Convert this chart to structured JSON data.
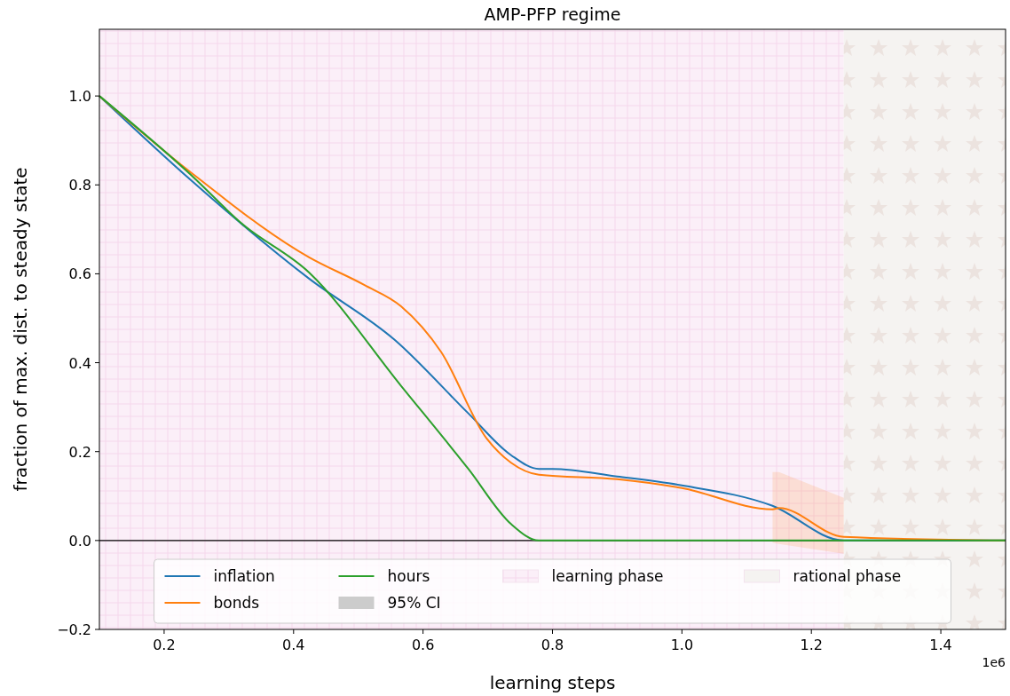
{
  "chart_data": {
    "type": "line",
    "title": "AMP-PFP regime",
    "xlabel": "learning steps",
    "ylabel": "fraction of max. dist. to steady state",
    "xlim": [
      0.1,
      1.5
    ],
    "xticks": [
      {
        "value": 0.2,
        "label": "0.2"
      },
      {
        "value": 0.4,
        "label": "0.4"
      },
      {
        "value": 0.6,
        "label": "0.6"
      },
      {
        "value": 0.8,
        "label": "0.8"
      },
      {
        "value": 1,
        "label": "1.0"
      },
      {
        "value": 1.2,
        "label": "1.2"
      },
      {
        "value": 1.4,
        "label": "1.4"
      }
    ],
    "ylim": [
      -0.2,
      1.15
    ],
    "yticks": [
      {
        "value": -0.2,
        "label": "−0.2"
      },
      {
        "value": 0,
        "label": "0.0"
      },
      {
        "value": 0.2,
        "label": "0.2"
      },
      {
        "value": 0.4,
        "label": "0.4"
      },
      {
        "value": 0.6,
        "label": "0.6"
      },
      {
        "value": 0.8,
        "label": "0.8"
      },
      {
        "value": 1,
        "label": "1.0"
      }
    ],
    "annotations": [
      "1e6",
      "95% CI"
    ],
    "legend": "bottom",
    "line_style": "solid",
    "ref_lines": [
      {
        "axis": "y",
        "value": 0,
        "label": null,
        "color": "#000000"
      }
    ],
    "bands": [
      {
        "axis": "x",
        "from": 0.1,
        "to": 1.25,
        "label": "learning phase",
        "color": "#fbeff8"
      },
      {
        "axis": "x",
        "from": 1.25,
        "to": 1.5,
        "label": "rational phase",
        "color": "#f5f3f1"
      }
    ],
    "series": [
      {
        "name": "inflation",
        "color": "#1f77b4",
        "x": [
          0.1,
          0.2396,
          0.424,
          0.5565,
          0.67,
          0.736,
          0.779,
          0.8,
          0.9,
          1.0,
          1.14,
          1.25,
          1.5
        ],
        "values": [
          1,
          0.813,
          0.589,
          0.451,
          0.286,
          0.192,
          0.161,
          0.161,
          0.144,
          0.124,
          0.078,
          0,
          0
        ]
      },
      {
        "name": "bonds",
        "color": "#ff7f0e",
        "x": [
          0.1,
          0.2396,
          0.424,
          0.509,
          0.566,
          0.628,
          0.698,
          0.736,
          0.779,
          0.9,
          1.0,
          1.14,
          1.15,
          1.25,
          1.5
        ],
        "values": [
          1,
          0.83,
          0.637,
          0.575,
          0.527,
          0.424,
          0.23,
          0.175,
          0.148,
          0.138,
          0.118,
          0.07,
          0.073,
          0.008,
          0
        ],
        "lower": [
          null,
          null,
          null,
          null,
          null,
          null,
          null,
          null,
          null,
          null,
          null,
          -0.005,
          -0.008,
          -0.03,
          null
        ],
        "upper": [
          null,
          null,
          null,
          null,
          null,
          null,
          null,
          null,
          null,
          null,
          null,
          0.154,
          0.154,
          0.096,
          null
        ]
      },
      {
        "name": "hours",
        "color": "#2ca02c",
        "x": [
          0.1,
          0.2396,
          0.32,
          0.424,
          0.566,
          0.67,
          0.736,
          0.779,
          1.5
        ],
        "values": [
          1,
          0.825,
          0.713,
          0.603,
          0.348,
          0.161,
          0.037,
          0,
          0
        ]
      }
    ]
  }
}
